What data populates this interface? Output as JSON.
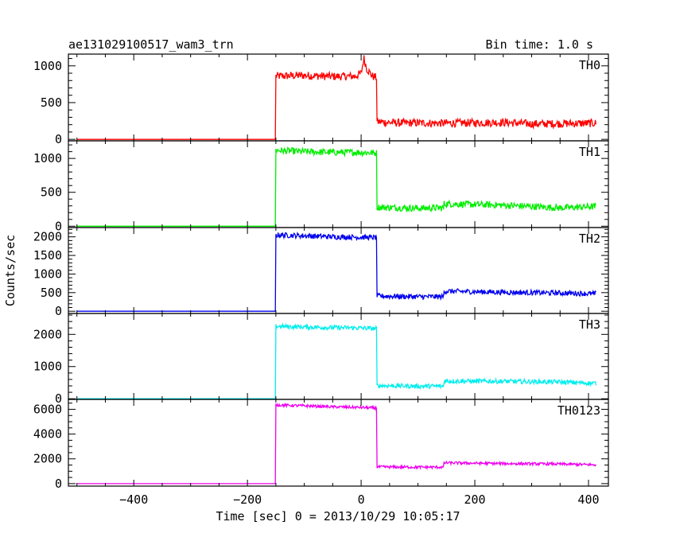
{
  "chart_data": {
    "type": "line",
    "title": "ae131029100517_wam3_trn",
    "bin_label": "Bin time: 1.0 s",
    "xlabel": "Time [sec] 0 = 2013/10/29 10:05:17",
    "ylabel": "Counts/sec",
    "xlim": [
      -515,
      435
    ],
    "x_ticks": [
      -400,
      -200,
      0,
      200,
      400
    ],
    "x_tick_labels": [
      "−400",
      "−200",
      "0",
      "200",
      "400"
    ],
    "x_minor_step": 50,
    "grid": false,
    "panels": [
      {
        "name": "TH0",
        "color": "#ff0000",
        "ylim": [
          -20,
          1160
        ],
        "yticks": [
          0,
          500,
          1000
        ],
        "minor_step": 100,
        "series": [
          [
            -500,
            0
          ],
          [
            -151,
            0
          ],
          [
            -150,
            860
          ],
          [
            -100,
            870
          ],
          [
            -50,
            855
          ],
          [
            -10,
            860
          ],
          [
            0,
            900
          ],
          [
            5,
            1100
          ],
          [
            10,
            960
          ],
          [
            20,
            860
          ],
          [
            27,
            840
          ],
          [
            28,
            240
          ],
          [
            60,
            225
          ],
          [
            150,
            220
          ],
          [
            250,
            230
          ],
          [
            300,
            210
          ],
          [
            413,
            220
          ]
        ],
        "noise": 55
      },
      {
        "name": "TH1",
        "color": "#00ee00",
        "ylim": [
          -20,
          1260
        ],
        "yticks": [
          0,
          500,
          1000
        ],
        "minor_step": 100,
        "series": [
          [
            -500,
            0
          ],
          [
            -151,
            0
          ],
          [
            -150,
            1120
          ],
          [
            -100,
            1100
          ],
          [
            -50,
            1090
          ],
          [
            0,
            1090
          ],
          [
            27,
            1080
          ],
          [
            28,
            280
          ],
          [
            100,
            265
          ],
          [
            145,
            270
          ],
          [
            146,
            330
          ],
          [
            250,
            310
          ],
          [
            350,
            270
          ],
          [
            413,
            290
          ]
        ],
        "noise": 50
      },
      {
        "name": "TH2",
        "color": "#0000ee",
        "ylim": [
          -60,
          2250
        ],
        "yticks": [
          0,
          500,
          1000,
          1500,
          2000
        ],
        "minor_step": 100,
        "series": [
          [
            -500,
            0
          ],
          [
            -151,
            0
          ],
          [
            -150,
            2050
          ],
          [
            -100,
            2030
          ],
          [
            -50,
            2000
          ],
          [
            0,
            1990
          ],
          [
            27,
            1980
          ],
          [
            28,
            410
          ],
          [
            100,
            390
          ],
          [
            145,
            390
          ],
          [
            146,
            540
          ],
          [
            250,
            510
          ],
          [
            350,
            490
          ],
          [
            413,
            470
          ]
        ],
        "noise": 70
      },
      {
        "name": "TH3",
        "color": "#00eeee",
        "ylim": [
          -20,
          2650
        ],
        "yticks": [
          0,
          1000,
          2000
        ],
        "minor_step": 200,
        "series": [
          [
            -500,
            0
          ],
          [
            -151,
            0
          ],
          [
            -150,
            2250
          ],
          [
            -100,
            2230
          ],
          [
            -50,
            2210
          ],
          [
            0,
            2200
          ],
          [
            27,
            2180
          ],
          [
            28,
            410
          ],
          [
            100,
            390
          ],
          [
            145,
            390
          ],
          [
            146,
            550
          ],
          [
            250,
            540
          ],
          [
            350,
            520
          ],
          [
            413,
            480
          ]
        ],
        "noise": 70
      },
      {
        "name": "TH0123",
        "color": "#ee00ee",
        "ylim": [
          -200,
          6800
        ],
        "yticks": [
          0,
          2000,
          4000,
          6000
        ],
        "minor_step": 500,
        "series": [
          [
            -500,
            0
          ],
          [
            -151,
            0
          ],
          [
            -150,
            6350
          ],
          [
            -100,
            6280
          ],
          [
            -50,
            6200
          ],
          [
            0,
            6150
          ],
          [
            27,
            6100
          ],
          [
            28,
            1350
          ],
          [
            100,
            1330
          ],
          [
            145,
            1330
          ],
          [
            146,
            1680
          ],
          [
            250,
            1620
          ],
          [
            350,
            1580
          ],
          [
            413,
            1520
          ]
        ],
        "noise": 110
      }
    ]
  }
}
